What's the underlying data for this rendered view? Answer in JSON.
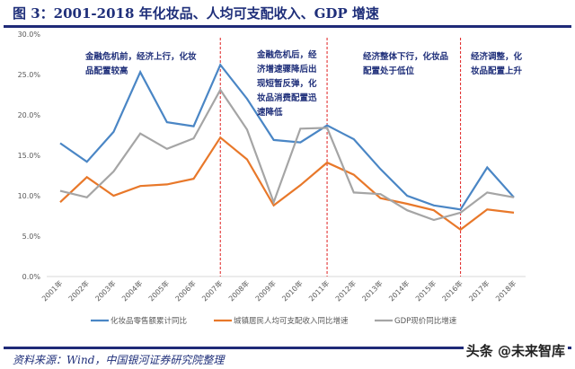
{
  "title": "图 3：2001-2018 年化妆品、人均可支配收入、GDP 增速",
  "source": "资料来源：Wind，中国银河证券研究院整理",
  "watermark": "头条 @未来智库",
  "chart_data": {
    "type": "line",
    "categories": [
      "2001年",
      "2002年",
      "2003年",
      "2004年",
      "2005年",
      "2006年",
      "2007年",
      "2008年",
      "2009年",
      "2010年",
      "2011年",
      "2012年",
      "2013年",
      "2014年",
      "2015年",
      "2016年",
      "2017年",
      "2018年"
    ],
    "yticks": [
      "0.0%",
      "5.0%",
      "10.0%",
      "15.0%",
      "20.0%",
      "25.0%",
      "30.0%"
    ],
    "ylim": [
      0,
      30
    ],
    "legend_position": "bottom",
    "grid": false,
    "series": [
      {
        "name": "化妆品零售额累计同比",
        "color": "#4a86c5",
        "values": [
          16.5,
          14.2,
          17.9,
          25.3,
          19.1,
          18.6,
          26.2,
          22.0,
          16.9,
          16.6,
          18.7,
          17.0,
          13.3,
          10.0,
          8.8,
          8.3,
          13.5,
          9.8
        ]
      },
      {
        "name": "城镇居民人均可支配收入同比增速",
        "color": "#e8782a",
        "values": [
          9.2,
          12.3,
          10.0,
          11.2,
          11.4,
          12.1,
          17.2,
          14.5,
          8.8,
          11.3,
          14.1,
          12.6,
          9.7,
          9.0,
          8.2,
          5.8,
          8.3,
          7.9
        ]
      },
      {
        "name": "GDP现价同比增速",
        "color": "#a5a5a5",
        "values": [
          10.6,
          9.8,
          13.0,
          17.7,
          15.8,
          17.1,
          23.1,
          18.2,
          9.2,
          18.3,
          18.4,
          10.4,
          10.2,
          8.2,
          7.0,
          7.9,
          10.4,
          9.8
        ]
      }
    ],
    "dividers": [
      "2007年",
      "2011年",
      "2016年"
    ],
    "annotations": [
      {
        "lines": [
          "金融危机前，经济上行，化妆",
          "品配置较高"
        ]
      },
      {
        "lines": [
          "金融危机后，经",
          "济增速骤降后出",
          "现短暂反弹，化",
          "妆品消费配置迅",
          "速降低"
        ]
      },
      {
        "lines": [
          "经济整体下行，化妆品",
          "配置处于低位"
        ]
      },
      {
        "lines": [
          "经济调整，化",
          "妆品配置上升"
        ]
      }
    ]
  }
}
